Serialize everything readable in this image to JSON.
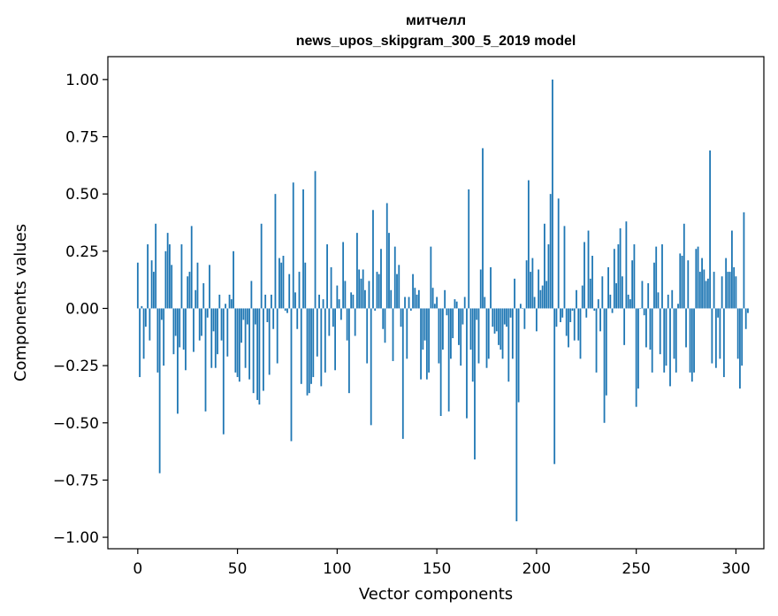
{
  "chart_data": {
    "type": "bar",
    "title": "митчелл",
    "subtitle": "news_upos_skipgram_300_5_2019 model",
    "xlabel": "Vector components",
    "ylabel": "Components values",
    "xlim": [
      -15,
      314
    ],
    "ylim": [
      -1.05,
      1.1
    ],
    "xticks": [
      0,
      50,
      100,
      150,
      200,
      250,
      300
    ],
    "yticks": [
      -1.0,
      -0.75,
      -0.5,
      -0.25,
      0.0,
      0.25,
      0.5,
      0.75,
      1.0
    ],
    "ytick_labels": [
      "−1.00",
      "−0.75",
      "−0.50",
      "−0.25",
      "0.00",
      "0.25",
      "0.50",
      "0.75",
      "1.00"
    ],
    "xtick_labels": [
      "0",
      "50",
      "100",
      "150",
      "200",
      "250",
      "300"
    ],
    "grid": false,
    "bar_color": "#1f77b4",
    "values": [
      0.2,
      -0.3,
      0.01,
      -0.22,
      -0.08,
      0.28,
      -0.14,
      0.21,
      0.16,
      0.37,
      -0.28,
      -0.72,
      -0.05,
      -0.25,
      0.25,
      0.33,
      0.28,
      0.19,
      -0.2,
      -0.12,
      -0.46,
      -0.17,
      0.28,
      -0.18,
      -0.27,
      0.14,
      0.16,
      0.36,
      -0.19,
      0.08,
      0.2,
      -0.14,
      -0.12,
      0.11,
      -0.45,
      -0.04,
      0.19,
      -0.26,
      -0.1,
      -0.26,
      -0.2,
      0.06,
      -0.14,
      -0.55,
      0.02,
      -0.21,
      0.06,
      0.04,
      0.25,
      -0.28,
      -0.3,
      -0.32,
      -0.15,
      -0.05,
      -0.26,
      -0.07,
      -0.31,
      0.12,
      -0.37,
      -0.07,
      -0.4,
      -0.42,
      0.37,
      -0.36,
      0.06,
      -0.06,
      -0.29,
      0.06,
      -0.09,
      0.5,
      -0.24,
      0.22,
      0.2,
      0.23,
      -0.01,
      -0.02,
      0.15,
      -0.58,
      0.55,
      0.07,
      -0.09,
      0.16,
      -0.33,
      0.52,
      0.2,
      -0.38,
      -0.37,
      -0.33,
      -0.3,
      0.6,
      -0.21,
      0.06,
      -0.34,
      0.04,
      -0.28,
      0.28,
      -0.12,
      0.18,
      -0.08,
      -0.27,
      0.1,
      0.04,
      -0.05,
      0.29,
      0.12,
      -0.14,
      -0.37,
      0.07,
      0.06,
      -0.12,
      0.33,
      0.17,
      0.13,
      0.17,
      0.08,
      -0.24,
      0.12,
      -0.51,
      0.43,
      -0.01,
      0.16,
      0.15,
      0.26,
      -0.09,
      -0.15,
      0.46,
      0.33,
      0.08,
      -0.23,
      0.27,
      0.15,
      0.19,
      -0.08,
      -0.57,
      0.05,
      -0.22,
      0.05,
      -0.01,
      0.15,
      0.09,
      0.06,
      0.08,
      -0.31,
      -0.18,
      -0.14,
      -0.31,
      -0.28,
      0.27,
      0.09,
      0.02,
      0.05,
      -0.24,
      -0.47,
      -0.18,
      0.08,
      -0.03,
      -0.45,
      -0.22,
      -0.13,
      0.04,
      0.03,
      -0.16,
      -0.25,
      -0.07,
      0.05,
      -0.48,
      0.52,
      -0.18,
      -0.32,
      -0.66,
      -0.05,
      -0.24,
      0.17,
      0.7,
      0.05,
      -0.26,
      -0.22,
      0.18,
      -0.08,
      -0.11,
      -0.1,
      -0.16,
      -0.18,
      -0.22,
      -0.07,
      -0.08,
      -0.32,
      -0.04,
      -0.22,
      0.13,
      -0.93,
      -0.41,
      0.02,
      0.0,
      -0.09,
      0.21,
      0.56,
      0.16,
      0.22,
      0.05,
      -0.1,
      0.17,
      0.08,
      0.1,
      0.37,
      0.12,
      0.28,
      0.5,
      1.0,
      -0.68,
      -0.08,
      0.48,
      -0.06,
      -0.04,
      0.36,
      -0.12,
      -0.17,
      -0.06,
      -0.01,
      -0.14,
      0.08,
      -0.14,
      -0.22,
      0.1,
      0.29,
      -0.04,
      0.34,
      0.13,
      0.23,
      -0.01,
      -0.28,
      0.04,
      -0.1,
      0.14,
      -0.5,
      -0.38,
      0.18,
      0.06,
      -0.02,
      0.26,
      0.11,
      0.28,
      0.35,
      0.14,
      -0.16,
      0.38,
      0.06,
      0.04,
      0.21,
      0.28,
      -0.43,
      -0.35,
      0.0,
      0.12,
      -0.03,
      -0.17,
      0.11,
      -0.18,
      -0.28,
      0.2,
      0.27,
      0.07,
      -0.2,
      0.28,
      -0.28,
      -0.25,
      0.06,
      -0.34,
      0.08,
      -0.22,
      -0.28,
      0.02,
      0.24,
      0.23,
      0.37,
      -0.17,
      0.21,
      -0.28,
      -0.32,
      -0.28,
      0.26,
      0.27,
      0.16,
      0.22,
      0.17,
      0.12,
      0.13,
      0.69,
      -0.24,
      0.16,
      -0.26,
      -0.04,
      -0.22,
      0.14,
      -0.3,
      0.22,
      0.16,
      0.16,
      0.34,
      0.18,
      0.14,
      -0.22,
      -0.35,
      -0.25,
      0.42,
      -0.09,
      -0.02
    ]
  }
}
